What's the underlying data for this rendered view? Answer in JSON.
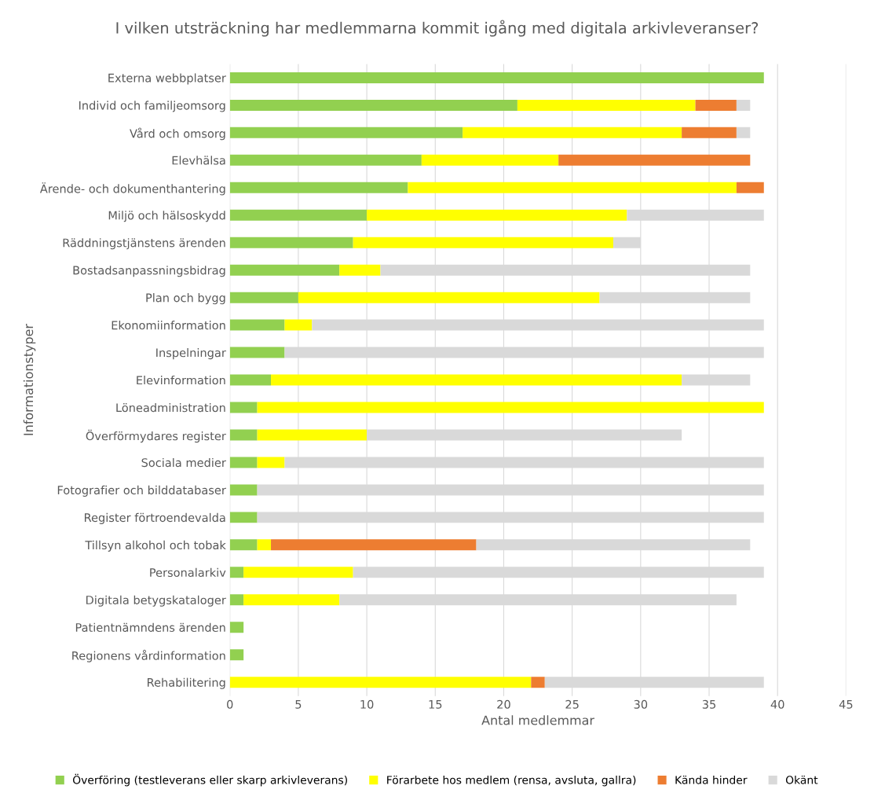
{
  "chart_data": {
    "type": "bar",
    "orientation": "horizontal",
    "stacked": true,
    "title": "I vilken utsträckning har medlemmarna kommit igång med digitala arkivleveranser?",
    "xlabel": "Antal medlemmar",
    "ylabel": "Informationstyper",
    "categories": [
      "Externa webbplatser",
      "Individ och familjeomsorg",
      "Vård och omsorg",
      "Elevhälsa",
      "Ärende- och dokumenthantering",
      "Miljö och hälsoskydd",
      "Räddningstjänstens ärenden",
      "Bostadsanpassningsbidrag",
      "Plan och bygg",
      "Ekonomiinformation",
      "Inspelningar",
      "Elevinformation",
      "Löneadministration",
      "Överförmydares register",
      "Sociala medier",
      "Fotografier och bilddatabaser",
      "Register förtroendevalda",
      "Tillsyn alkohol och tobak",
      "Personalarkiv",
      "Digitala betygskataloger",
      "Patientnämndens ärenden",
      "Regionens vårdinformation",
      "Rehabilitering"
    ],
    "series": [
      {
        "name": "Överföring (testleverans eller skarp arkivleverans)",
        "color": "#92d050",
        "values": [
          39,
          21,
          17,
          14,
          13,
          10,
          9,
          8,
          5,
          4,
          4,
          3,
          2,
          2,
          2,
          2,
          2,
          2,
          1,
          1,
          1,
          1,
          0
        ]
      },
      {
        "name": "Förarbete hos medlem (rensa, avsluta, gallra)",
        "color": "#ffff00",
        "values": [
          0,
          13,
          16,
          10,
          24,
          19,
          19,
          3,
          22,
          2,
          0,
          30,
          37,
          8,
          2,
          0,
          0,
          1,
          8,
          7,
          0,
          0,
          22
        ]
      },
      {
        "name": "Kända hinder",
        "color": "#ed7d31",
        "values": [
          0,
          3,
          4,
          14,
          2,
          0,
          0,
          0,
          0,
          0,
          0,
          0,
          0,
          0,
          0,
          0,
          0,
          15,
          0,
          0,
          0,
          0,
          1
        ]
      },
      {
        "name": "Okänt",
        "color": "#d9d9d9",
        "values": [
          0,
          1,
          1,
          0,
          0,
          10,
          2,
          27,
          11,
          33,
          35,
          5,
          0,
          23,
          35,
          37,
          37,
          20,
          30,
          29,
          0,
          0,
          16
        ]
      }
    ],
    "xlim": [
      0,
      45
    ],
    "xticks": [
      0,
      5,
      10,
      15,
      20,
      25,
      30,
      35,
      40,
      45
    ],
    "grid": "x",
    "legend": "bottom"
  }
}
